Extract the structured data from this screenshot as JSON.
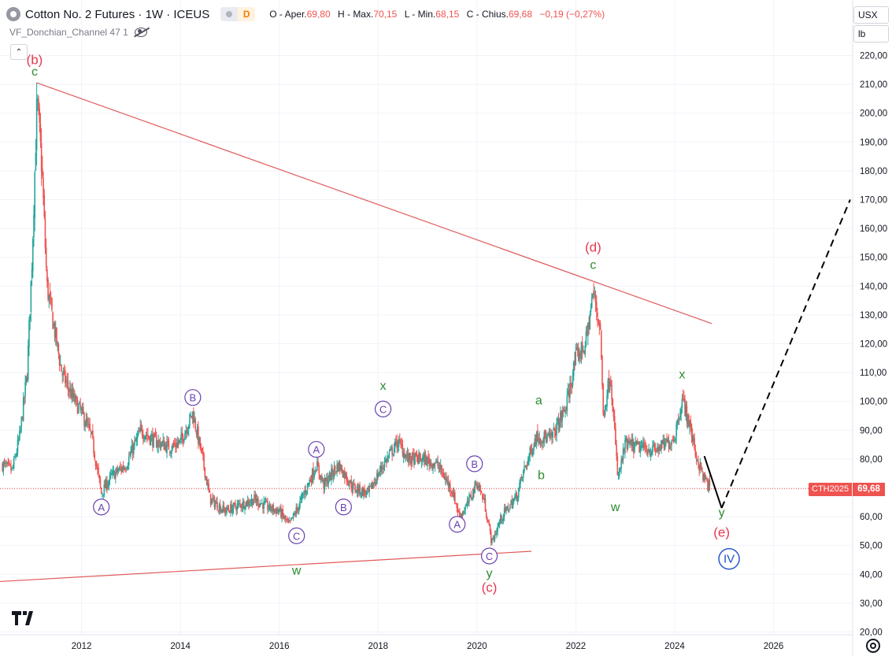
{
  "header": {
    "title": "Cotton No. 2 Futures · 1W · ICEUS",
    "source_badge": "D",
    "ohlc": {
      "open_label": "O - Aper.",
      "open": "69,80",
      "high_label": "H - Max.",
      "high": "70,15",
      "low_label": "L - Min.",
      "low": "68,15",
      "close_label": "C - Chius.",
      "close": "69,68",
      "change": "−0,19 (−0,27%)"
    }
  },
  "indicator": {
    "label": "VF_Donchian_Channel 47 1"
  },
  "collapse_glyph": "⌃",
  "axis": {
    "currency": "USX",
    "unit": "lb"
  },
  "price_tag": {
    "symbol": "CTH2025",
    "value": "69,68"
  },
  "colors": {
    "up": "#26a69a",
    "down": "#ef5350",
    "trend": "#e05a5a",
    "wave_red": "#e53950",
    "wave_green": "#2e8b2e",
    "wave_purple": "#6a3fb0",
    "wave_blue": "#1e4fc8",
    "grid": "#f0f3fa",
    "current_price_line": "#ef5350"
  },
  "chart_data": {
    "type": "candlestick",
    "y_ticks": [
      "220,00",
      "210,00",
      "200,00",
      "190,00",
      "180,00",
      "170,00",
      "160,00",
      "150,00",
      "140,00",
      "130,00",
      "120,00",
      "110,00",
      "100,00",
      "90,00",
      "80,00",
      "70,00",
      "60,00",
      "50,00",
      "40,00",
      "30,00",
      "20,00"
    ],
    "y_range": [
      20,
      220
    ],
    "x_ticks": [
      "2012",
      "2014",
      "2016",
      "2018",
      "2020",
      "2022",
      "2024",
      "2026"
    ],
    "x_range": [
      2010.35,
      2027.6
    ],
    "current_price": 69.68,
    "anchors": [
      [
        2010.4,
        78
      ],
      [
        2010.6,
        76
      ],
      [
        2010.75,
        88
      ],
      [
        2010.9,
        110
      ],
      [
        2011.0,
        150
      ],
      [
        2011.1,
        205
      ],
      [
        2011.2,
        180
      ],
      [
        2011.3,
        140
      ],
      [
        2011.45,
        125
      ],
      [
        2011.6,
        110
      ],
      [
        2011.8,
        102
      ],
      [
        2012.0,
        96
      ],
      [
        2012.2,
        88
      ],
      [
        2012.4,
        68
      ],
      [
        2012.6,
        74
      ],
      [
        2012.9,
        78
      ],
      [
        2013.2,
        90
      ],
      [
        2013.5,
        86
      ],
      [
        2013.8,
        84
      ],
      [
        2014.0,
        86
      ],
      [
        2014.25,
        96
      ],
      [
        2014.45,
        80
      ],
      [
        2014.6,
        66
      ],
      [
        2014.9,
        62
      ],
      [
        2015.2,
        64
      ],
      [
        2015.5,
        66
      ],
      [
        2015.8,
        63
      ],
      [
        2016.0,
        62
      ],
      [
        2016.2,
        57
      ],
      [
        2016.4,
        64
      ],
      [
        2016.6,
        72
      ],
      [
        2016.75,
        78
      ],
      [
        2016.9,
        71
      ],
      [
        2017.2,
        78
      ],
      [
        2017.5,
        70
      ],
      [
        2017.8,
        68
      ],
      [
        2018.1,
        78
      ],
      [
        2018.4,
        86
      ],
      [
        2018.6,
        80
      ],
      [
        2018.9,
        80
      ],
      [
        2019.2,
        78
      ],
      [
        2019.5,
        69
      ],
      [
        2019.65,
        60
      ],
      [
        2019.8,
        64
      ],
      [
        2020.0,
        72
      ],
      [
        2020.15,
        65
      ],
      [
        2020.3,
        51
      ],
      [
        2020.5,
        60
      ],
      [
        2020.8,
        67
      ],
      [
        2020.95,
        76
      ],
      [
        2021.2,
        88
      ],
      [
        2021.5,
        87
      ],
      [
        2021.8,
        98
      ],
      [
        2022.0,
        115
      ],
      [
        2022.2,
        120
      ],
      [
        2022.35,
        138
      ],
      [
        2022.5,
        125
      ],
      [
        2022.55,
        95
      ],
      [
        2022.7,
        110
      ],
      [
        2022.85,
        73
      ],
      [
        2023.0,
        85
      ],
      [
        2023.3,
        84
      ],
      [
        2023.6,
        83
      ],
      [
        2023.9,
        86
      ],
      [
        2024.0,
        88
      ],
      [
        2024.15,
        101
      ],
      [
        2024.3,
        92
      ],
      [
        2024.45,
        80
      ],
      [
        2024.6,
        73
      ],
      [
        2024.72,
        69.7
      ]
    ],
    "trendlines": [
      {
        "from": [
          2011.1,
          210.5
        ],
        "to": [
          2024.75,
          127
        ]
      },
      {
        "from": [
          2010.35,
          37.5
        ],
        "to": [
          2021.1,
          48
        ]
      }
    ],
    "projection": {
      "solid": [
        [
          2024.6,
          81
        ],
        [
          2024.95,
          63
        ]
      ],
      "dashed": [
        [
          2024.95,
          63
        ],
        [
          2027.55,
          170
        ]
      ]
    },
    "wave_labels": [
      {
        "text": "(b)",
        "x": 2011.05,
        "y": 217,
        "style": "red"
      },
      {
        "text": "c",
        "x": 2011.05,
        "y": 213,
        "style": "green"
      },
      {
        "text": "A",
        "x": 2012.4,
        "y": 62,
        "style": "purple-circle"
      },
      {
        "text": "B",
        "x": 2014.25,
        "y": 100,
        "style": "purple-circle"
      },
      {
        "text": "C",
        "x": 2016.35,
        "y": 52,
        "style": "purple-circle"
      },
      {
        "text": "w",
        "x": 2016.35,
        "y": 40,
        "style": "green"
      },
      {
        "text": "A",
        "x": 2016.75,
        "y": 82,
        "style": "purple-circle"
      },
      {
        "text": "B",
        "x": 2017.3,
        "y": 62,
        "style": "purple-circle"
      },
      {
        "text": "x",
        "x": 2018.1,
        "y": 104,
        "style": "green"
      },
      {
        "text": "C",
        "x": 2018.1,
        "y": 96,
        "style": "purple-circle"
      },
      {
        "text": "A",
        "x": 2019.6,
        "y": 56,
        "style": "purple-circle"
      },
      {
        "text": "B",
        "x": 2019.95,
        "y": 77,
        "style": "purple-circle"
      },
      {
        "text": "C",
        "x": 2020.25,
        "y": 45,
        "style": "purple-circle"
      },
      {
        "text": "y",
        "x": 2020.25,
        "y": 39,
        "style": "green"
      },
      {
        "text": "(c)",
        "x": 2020.25,
        "y": 34,
        "style": "red"
      },
      {
        "text": "a",
        "x": 2021.25,
        "y": 99,
        "style": "green"
      },
      {
        "text": "b",
        "x": 2021.3,
        "y": 73,
        "style": "green"
      },
      {
        "text": "(d)",
        "x": 2022.35,
        "y": 152,
        "style": "red"
      },
      {
        "text": "c",
        "x": 2022.35,
        "y": 146,
        "style": "green"
      },
      {
        "text": "w",
        "x": 2022.8,
        "y": 62,
        "style": "green"
      },
      {
        "text": "x",
        "x": 2024.15,
        "y": 108,
        "style": "green"
      },
      {
        "text": "y",
        "x": 2024.95,
        "y": 60,
        "style": "green"
      },
      {
        "text": "(e)",
        "x": 2024.95,
        "y": 53,
        "style": "red"
      },
      {
        "text": "IV",
        "x": 2025.1,
        "y": 44,
        "style": "blue-circle"
      }
    ]
  }
}
